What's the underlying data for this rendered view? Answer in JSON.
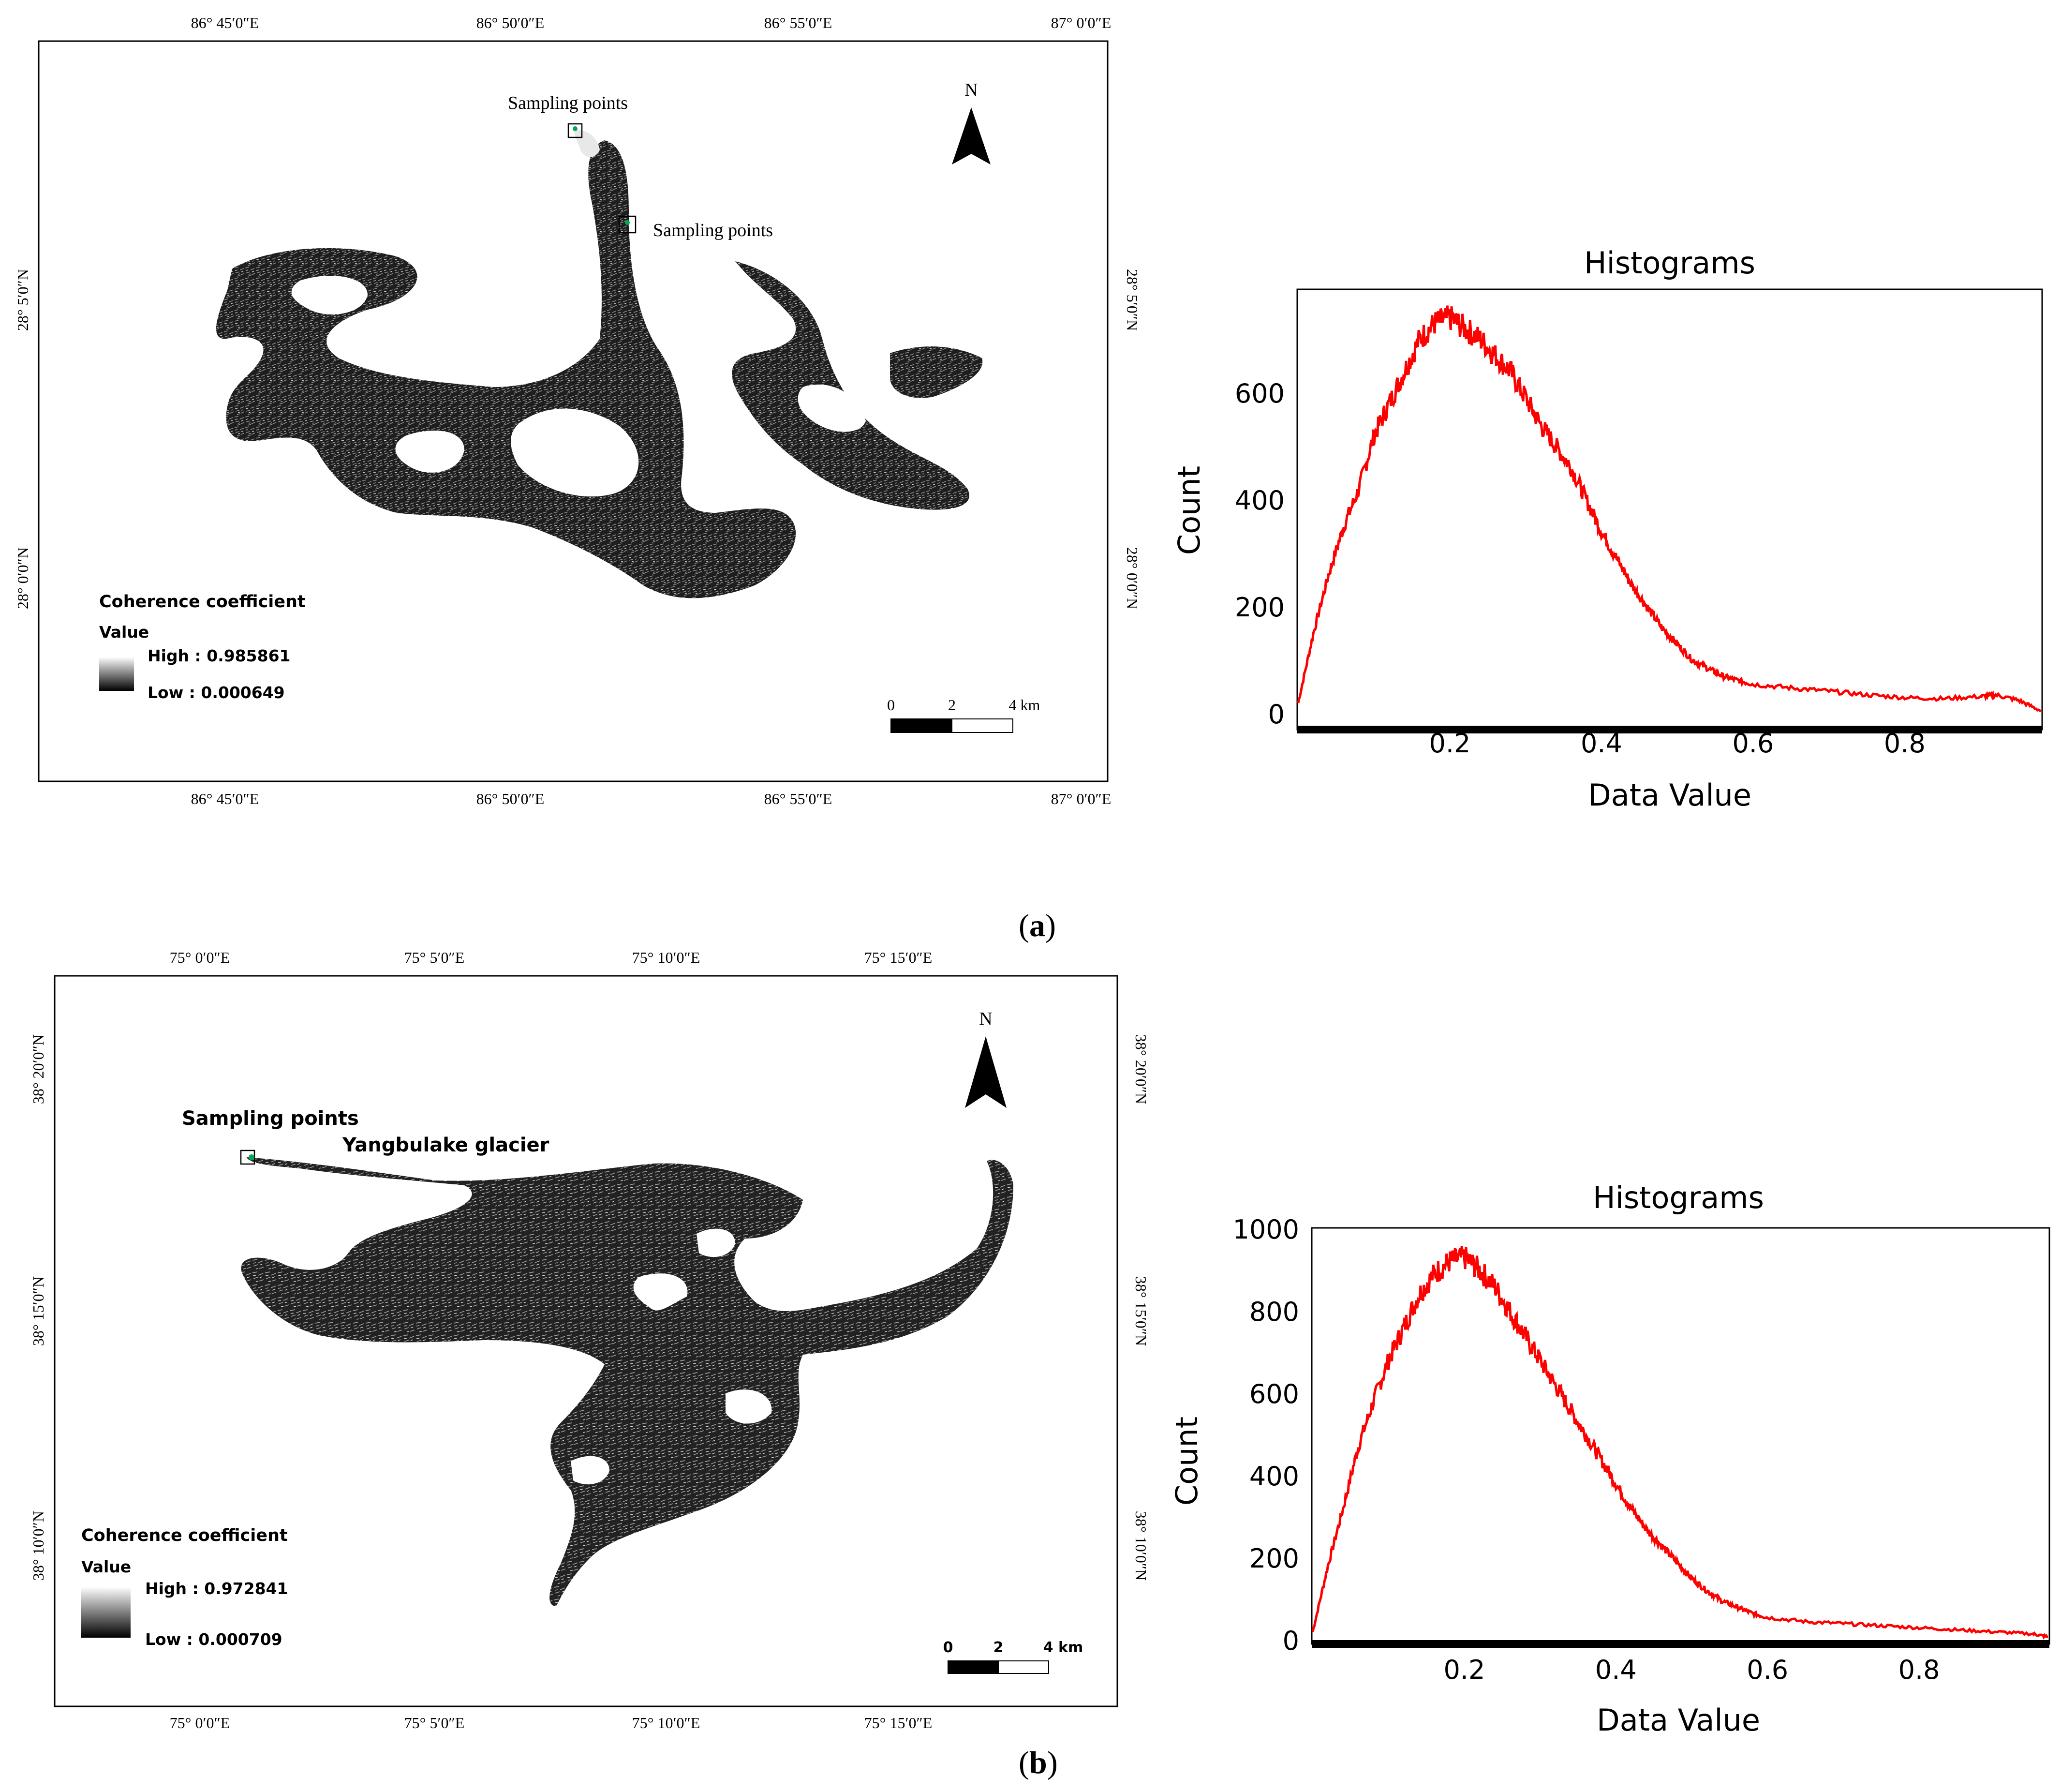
{
  "panels": [
    {
      "id": "a",
      "caption": "a",
      "map": {
        "lon_ticks": [
          "86° 45′0″E",
          "86° 50′0″E",
          "86° 55′0″E",
          "87° 0′0″E"
        ],
        "lat_ticks": [
          "28° 5′0″N",
          "28° 0′0″N"
        ],
        "north_label": "N",
        "annotations": [
          "Sampling points",
          "Sampling points"
        ],
        "legend": {
          "title": "Coherence coefficient",
          "subtitle": "Value",
          "high": "High : 0.985861",
          "low": "Low : 0.000649"
        },
        "scalebar": {
          "labels": [
            "0",
            "2",
            "4 km"
          ]
        }
      }
    },
    {
      "id": "b",
      "caption": "b",
      "map": {
        "lon_ticks": [
          "75° 0′0″E",
          "75° 5′0″E",
          "75° 10′0″E",
          "75° 15′0″E"
        ],
        "lat_ticks": [
          "38° 20′0″N",
          "38° 15′0″N",
          "38° 10′0″N"
        ],
        "north_label": "N",
        "annotations": [
          "Sampling points",
          "Yangbulake glacier"
        ],
        "legend": {
          "title": "Coherence coefficient",
          "subtitle": "Value",
          "high": "High : 0.972841",
          "low": "Low : 0.000709"
        },
        "scalebar": {
          "labels": [
            "0",
            "2",
            "4 km"
          ]
        }
      }
    }
  ],
  "chart_data": [
    {
      "type": "line",
      "title": "Histograms",
      "xlabel": "Data Value",
      "ylabel": "Count",
      "xlim": [
        0,
        0.98
      ],
      "ylim": [
        0,
        760
      ],
      "x_ticks": [
        0.2,
        0.4,
        0.6,
        0.8
      ],
      "y_ticks": [
        0,
        200,
        400,
        600
      ],
      "line_color": "#ff0000",
      "series": [
        {
          "x": [
            0.0,
            0.02,
            0.04,
            0.06,
            0.08,
            0.1,
            0.12,
            0.14,
            0.16,
            0.18,
            0.2,
            0.22,
            0.24,
            0.26,
            0.28,
            0.3,
            0.32,
            0.34,
            0.36,
            0.38,
            0.4,
            0.42,
            0.44,
            0.46,
            0.48,
            0.5,
            0.52,
            0.54,
            0.56,
            0.58,
            0.6,
            0.65,
            0.7,
            0.75,
            0.8,
            0.85,
            0.9,
            0.92,
            0.95,
            0.98
          ],
          "y": [
            20,
            150,
            260,
            350,
            420,
            520,
            580,
            640,
            700,
            730,
            740,
            720,
            700,
            670,
            640,
            590,
            540,
            500,
            460,
            400,
            340,
            290,
            240,
            200,
            160,
            130,
            100,
            85,
            70,
            62,
            55,
            48,
            42,
            35,
            30,
            28,
            32,
            35,
            25,
            5
          ]
        }
      ]
    },
    {
      "type": "line",
      "title": "Histograms",
      "xlabel": "Data Value",
      "ylabel": "Count",
      "xlim": [
        0,
        0.97
      ],
      "ylim": [
        0,
        1000
      ],
      "x_ticks": [
        0.2,
        0.4,
        0.6,
        0.8
      ],
      "y_ticks": [
        0,
        200,
        400,
        600,
        800,
        1000
      ],
      "line_color": "#ff0000",
      "series": [
        {
          "x": [
            0.0,
            0.02,
            0.04,
            0.06,
            0.08,
            0.1,
            0.12,
            0.14,
            0.16,
            0.18,
            0.2,
            0.22,
            0.24,
            0.26,
            0.28,
            0.3,
            0.32,
            0.34,
            0.36,
            0.38,
            0.4,
            0.42,
            0.44,
            0.46,
            0.48,
            0.5,
            0.52,
            0.54,
            0.56,
            0.58,
            0.6,
            0.65,
            0.7,
            0.75,
            0.8,
            0.85,
            0.9,
            0.95,
            0.97
          ],
          "y": [
            20,
            180,
            320,
            470,
            580,
            680,
            760,
            840,
            890,
            920,
            930,
            900,
            860,
            800,
            740,
            680,
            620,
            560,
            500,
            440,
            380,
            320,
            270,
            230,
            190,
            150,
            120,
            95,
            80,
            65,
            55,
            45,
            40,
            35,
            30,
            25,
            20,
            15,
            8
          ]
        }
      ]
    }
  ]
}
